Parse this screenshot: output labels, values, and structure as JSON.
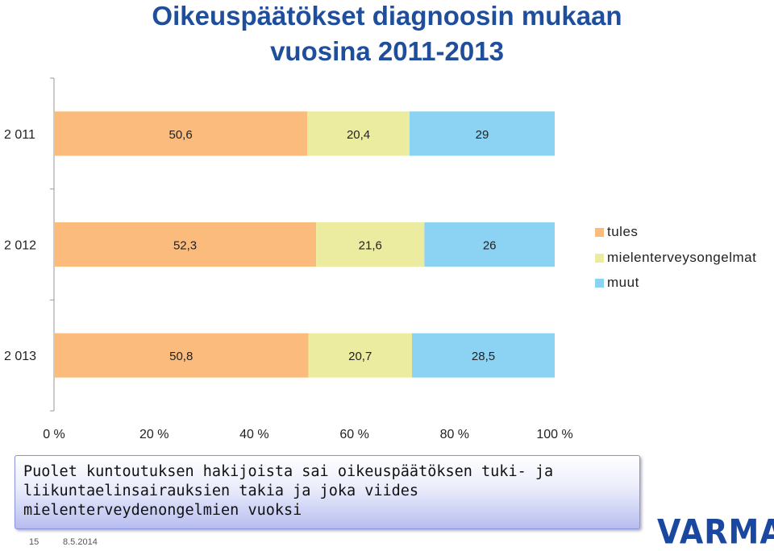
{
  "title_line1": "Oikeuspäätökset diagnoosin mukaan",
  "title_line2": "vuosina 2011-2013",
  "colors": {
    "tules": "#fabb7c",
    "mielenterveysongelmat": "#ececa0",
    "muut": "#8cd2f2",
    "title": "#1f4e9c"
  },
  "chart_data": {
    "type": "bar",
    "orientation": "horizontal",
    "stacked": "percent",
    "categories": [
      "2 011",
      "2 012",
      "2 013"
    ],
    "series": [
      {
        "name": "tules",
        "values": [
          50.6,
          52.3,
          50.8
        ],
        "labels": [
          "50,6",
          "52,3",
          "50,8"
        ]
      },
      {
        "name": "mielenterveysongelmat",
        "values": [
          20.4,
          21.6,
          20.7
        ],
        "labels": [
          "20,4",
          "21,6",
          "20,7"
        ]
      },
      {
        "name": "muut",
        "values": [
          29,
          26,
          28.5
        ],
        "labels": [
          "29",
          "26",
          "28,5"
        ]
      }
    ],
    "xlim": [
      0,
      100
    ],
    "xticks": [
      "0 %",
      "20 %",
      "40 %",
      "60 %",
      "80 %",
      "100 %"
    ],
    "legend_position": "right",
    "grid": false
  },
  "callout_text": "Puolet kuntoutuksen hakijoista sai oikeuspäätöksen tuki- ja liikuntaelinsairauksien takia ja joka viides mielenterveydenongelmien vuoksi",
  "footer": {
    "page": "15",
    "date": "8.5.2014"
  },
  "logo_text": "VARMA"
}
